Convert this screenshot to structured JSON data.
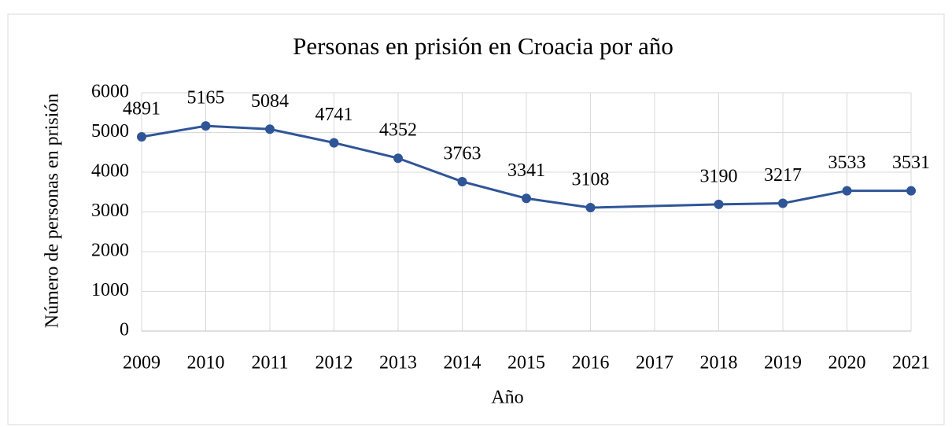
{
  "chart_data": {
    "type": "line",
    "title": "Personas en prisión en Croacia por año",
    "x_label": "Año",
    "y_label": "Número de personas en prisión",
    "x": [
      2009,
      2010,
      2011,
      2012,
      2013,
      2014,
      2015,
      2016,
      2018,
      2019,
      2020,
      2021
    ],
    "series": [
      {
        "name": "Personas en prisión",
        "color": "#2f5597",
        "values": [
          4891,
          5165,
          5084,
          4741,
          4352,
          3763,
          3341,
          3108,
          3190,
          3217,
          3533,
          3531
        ]
      }
    ],
    "xlim": [
      2009,
      2021
    ],
    "xticks": [
      2009,
      2010,
      2011,
      2012,
      2013,
      2014,
      2015,
      2016,
      2017,
      2018,
      2019,
      2020,
      2021
    ],
    "ylim": [
      0,
      6000
    ],
    "yticks": [
      0,
      1000,
      2000,
      3000,
      4000,
      5000,
      6000
    ],
    "grid": true
  }
}
